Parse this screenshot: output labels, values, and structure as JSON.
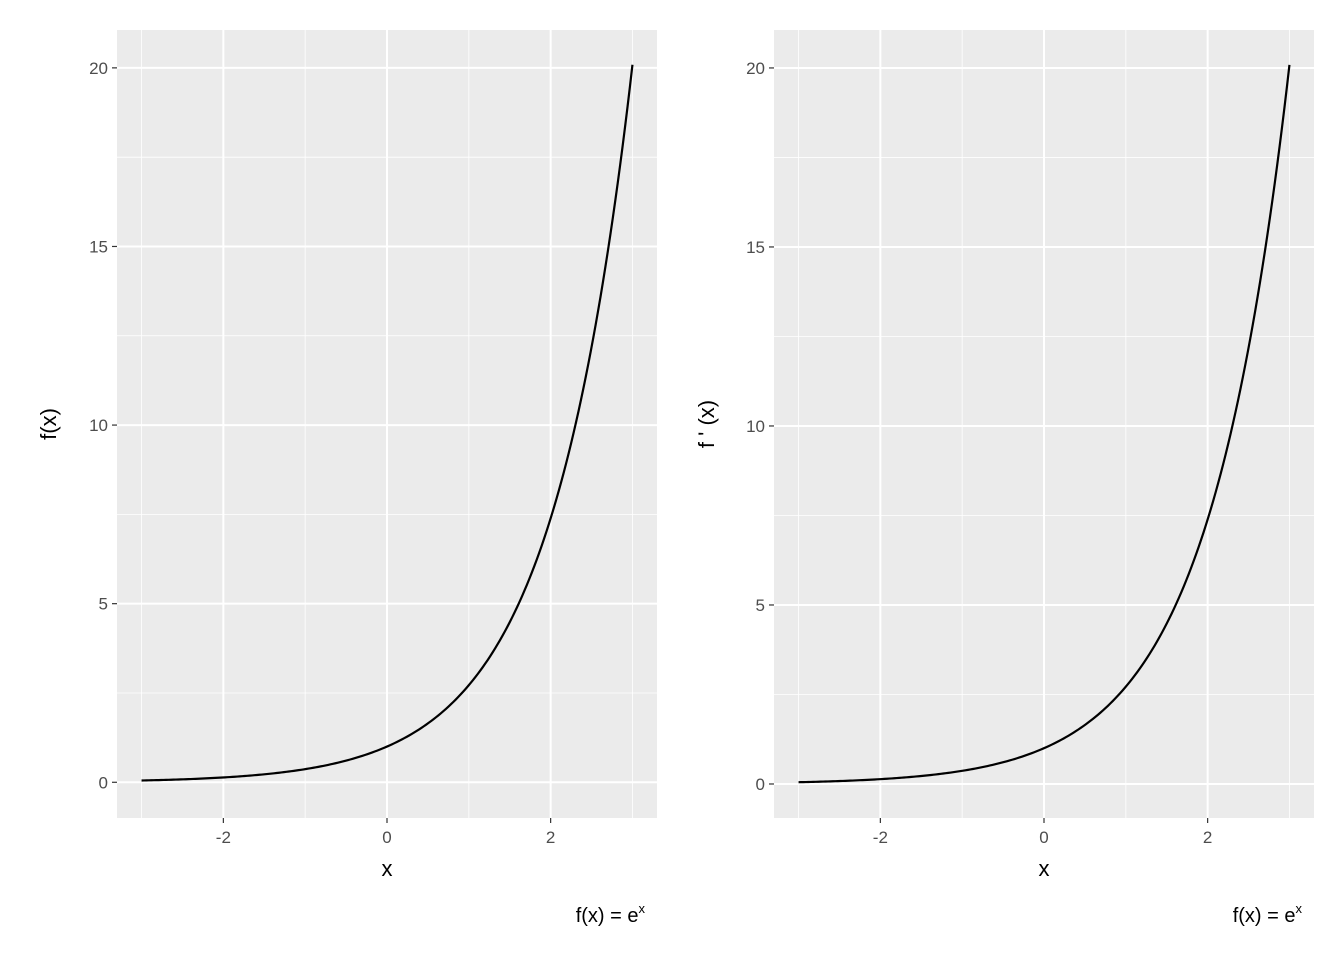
{
  "chart_data": [
    {
      "type": "line",
      "function": "exp(x)",
      "xlabel": "x",
      "ylabel": "f(x)",
      "caption": {
        "base": "f(x) = e",
        "superscript": "x"
      },
      "xlim": [
        -3.3,
        3.3
      ],
      "ylim": [
        -1.0,
        21.06
      ],
      "x_ticks": [
        -2,
        0,
        2
      ],
      "x_tick_labels": [
        "-2",
        "0",
        "2"
      ],
      "y_ticks": [
        0,
        5,
        10,
        15,
        20
      ],
      "y_tick_labels": [
        "0",
        "5",
        "10",
        "15",
        "20"
      ],
      "x_range": [
        -3,
        3
      ],
      "grid": true,
      "line_color": "#000000",
      "panel_color": "#EBEBEB"
    },
    {
      "type": "line",
      "function": "exp(x)",
      "xlabel": "x",
      "ylabel": "f ' (x)",
      "caption": {
        "base": "f(x) = e",
        "superscript": "x"
      },
      "xlim": [
        -3.3,
        3.3
      ],
      "ylim": [
        -0.95,
        21.06
      ],
      "x_ticks": [
        -2,
        0,
        2
      ],
      "x_tick_labels": [
        "-2",
        "0",
        "2"
      ],
      "y_ticks": [
        0,
        5,
        10,
        15,
        20
      ],
      "y_tick_labels": [
        "0",
        "5",
        "10",
        "15",
        "20"
      ],
      "x_range": [
        -3,
        3
      ],
      "grid": true,
      "line_color": "#000000",
      "panel_color": "#EBEBEB"
    }
  ]
}
